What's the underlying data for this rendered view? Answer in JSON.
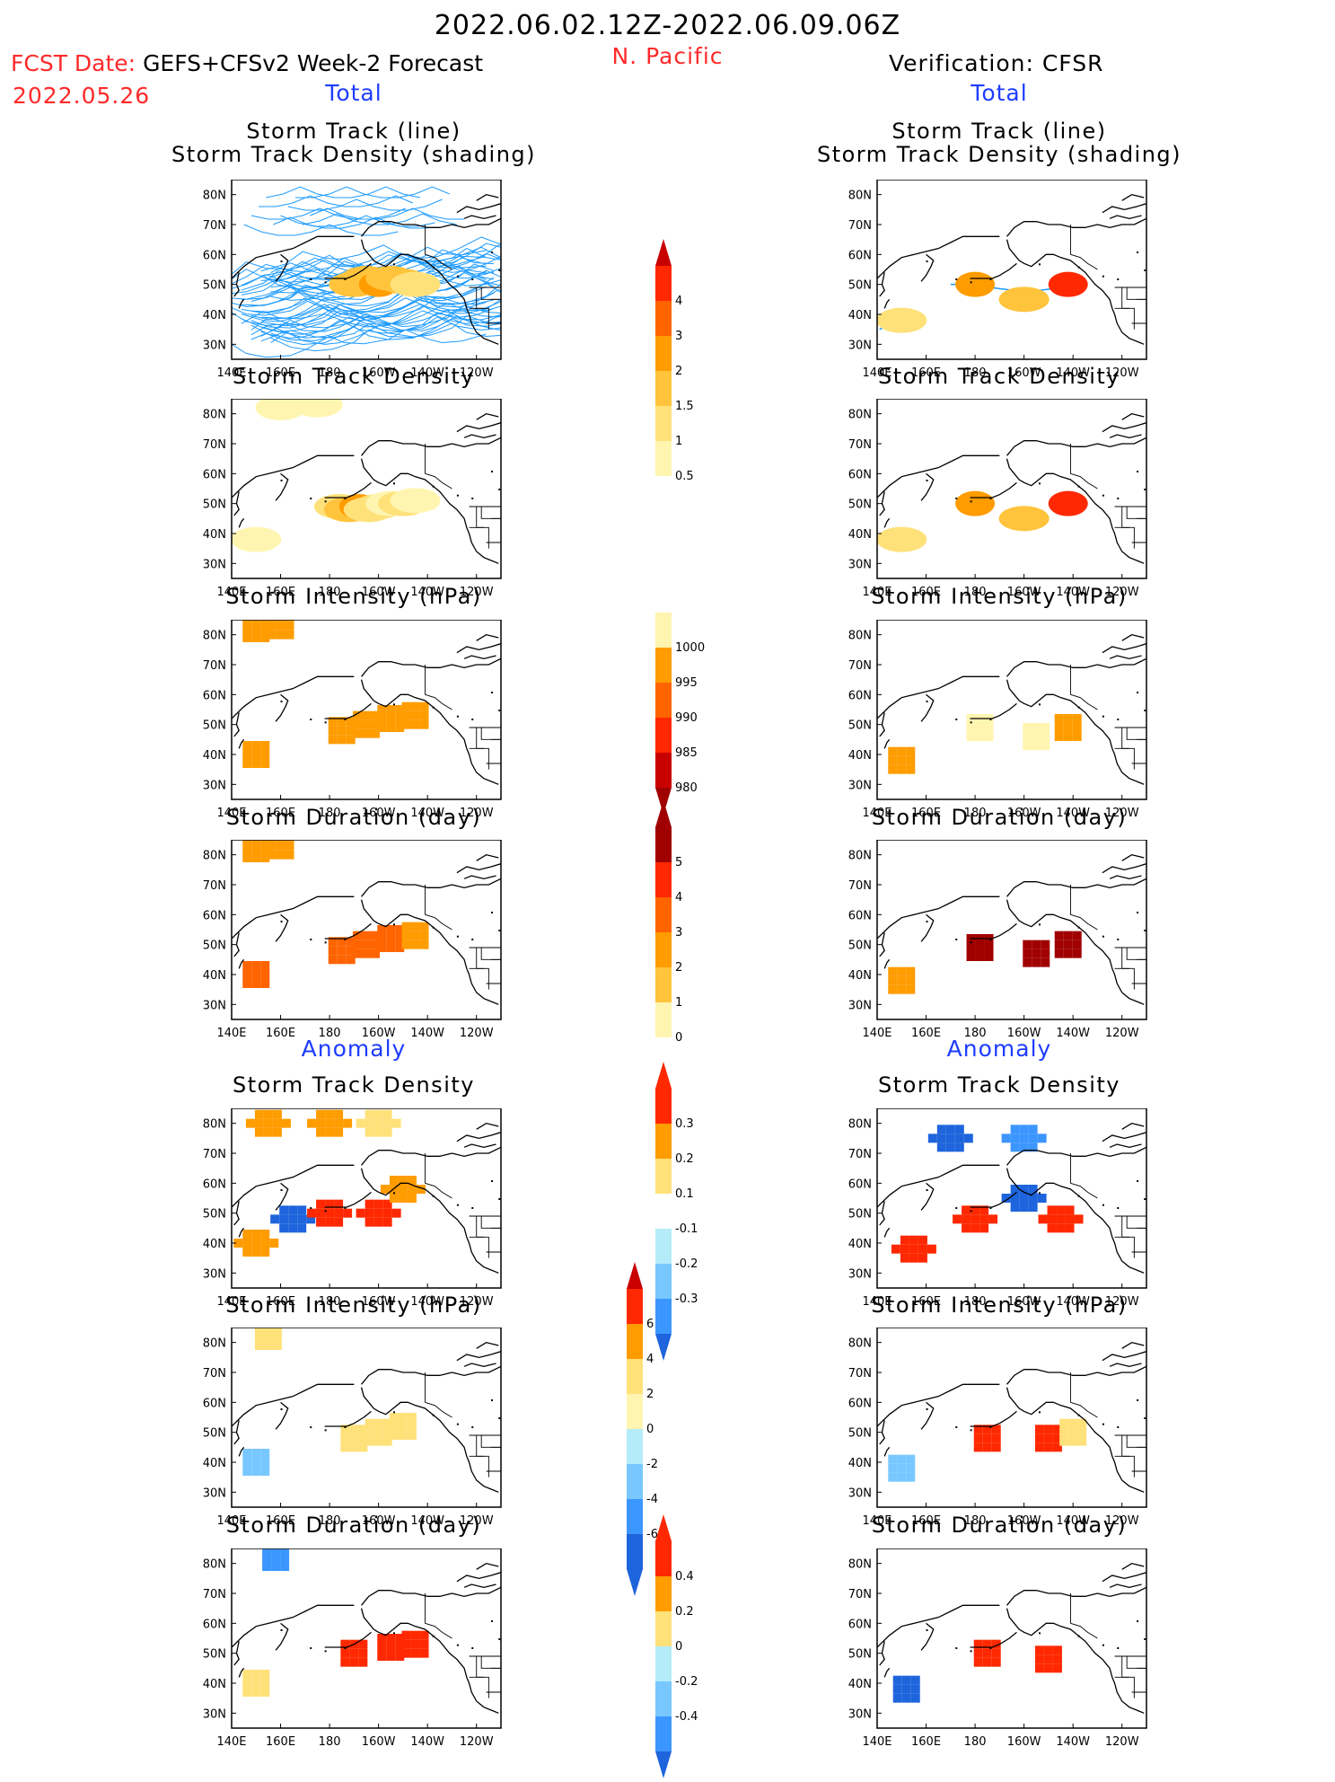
{
  "header": {
    "period": "2022.06.02.12Z-2022.06.09.06Z",
    "fcst_label": "FCST Date:",
    "fcst_model": "GEFS+CFSv2 Week-2 Forecast",
    "fcst_date": "2022.05.26",
    "region": "N. Pacific",
    "verification": "Verification: CFSR",
    "total_left": "Total",
    "total_right": "Total",
    "anomaly_left": "Anomaly",
    "anomaly_right": "Anomaly"
  },
  "panel_titles": {
    "track_a": "Storm Track (line)",
    "track_b": "Storm Track Density (shading)",
    "density": "Storm Track Density",
    "intensity": "Storm Intensity (hPa)",
    "duration": "Storm Duration (day)"
  },
  "axes": {
    "xticks": [
      "140E",
      "160E",
      "180",
      "160W",
      "140W",
      "120W"
    ],
    "yticks": [
      "80N",
      "70N",
      "60N",
      "50N",
      "40N",
      "30N"
    ]
  },
  "colorbars": {
    "density": [
      "4",
      "3",
      "2",
      "1.5",
      "1",
      "0.5"
    ],
    "intensity": [
      "1000",
      "995",
      "990",
      "985",
      "980"
    ],
    "duration": [
      "5",
      "4",
      "3",
      "2",
      "1",
      "0"
    ],
    "density_anom": [
      "0.3",
      "0.2",
      "0.1",
      "-0.1",
      "-0.2",
      "-0.3"
    ],
    "intensity_anom": [
      "6",
      "4",
      "2",
      "0",
      "-2",
      "-4",
      "-6"
    ],
    "duration_anom": [
      "0.4",
      "0.2",
      "0",
      "-0.2",
      "-0.4"
    ]
  },
  "colors": {
    "track_line": "#1e9bff",
    "pale_yellow": "#fff5b0",
    "yellow": "#ffe17a",
    "light_orange": "#ffc43c",
    "orange": "#ff9c00",
    "dark_orange": "#ff6400",
    "red": "#ff2800",
    "dark_red": "#c80000",
    "maroon": "#a00000",
    "light_blue": "#b4ecfa",
    "mid_blue": "#78c8ff",
    "blue": "#3c96ff",
    "dark_blue": "#1e64dc"
  },
  "chart_data": [
    {
      "type": "heatmap",
      "panel": "forecast-track",
      "title": "Storm Track (line) / Storm Track Density (shading)",
      "xlim": [
        140,
        250
      ],
      "ylim": [
        25,
        85
      ],
      "cells": [
        [
          190,
          50,
          1.5
        ],
        [
          195,
          52,
          1.5
        ],
        [
          200,
          50,
          2
        ],
        [
          205,
          52,
          1.5
        ],
        [
          210,
          51,
          1.5
        ],
        [
          215,
          50,
          1
        ]
      ]
    },
    {
      "type": "heatmap",
      "panel": "forecast-density",
      "title": "Storm Track Density",
      "xlim": [
        140,
        250
      ],
      "ylim": [
        25,
        85
      ],
      "cells": [
        [
          184,
          49,
          1
        ],
        [
          188,
          48,
          1.5
        ],
        [
          192,
          49,
          2
        ],
        [
          196,
          48,
          1
        ],
        [
          200,
          49,
          1
        ],
        [
          205,
          50,
          0.5
        ],
        [
          210,
          50,
          1
        ],
        [
          215,
          51,
          0.5
        ],
        [
          160,
          82,
          0.5
        ],
        [
          175,
          83,
          0.5
        ],
        [
          150,
          38,
          0.5
        ]
      ]
    },
    {
      "type": "heatmap",
      "panel": "forecast-intensity",
      "title": "Storm Intensity (hPa)",
      "xlim": [
        140,
        250
      ],
      "ylim": [
        25,
        85
      ],
      "cells": [
        [
          150,
          82,
          995
        ],
        [
          160,
          83,
          995
        ],
        [
          185,
          48,
          995
        ],
        [
          195,
          50,
          995
        ],
        [
          205,
          52,
          995
        ],
        [
          215,
          53,
          995
        ],
        [
          150,
          40,
          995
        ]
      ]
    },
    {
      "type": "heatmap",
      "panel": "forecast-duration",
      "title": "Storm Duration (day)",
      "xlim": [
        140,
        250
      ],
      "ylim": [
        25,
        85
      ],
      "cells": [
        [
          150,
          82,
          3
        ],
        [
          160,
          83,
          3
        ],
        [
          185,
          48,
          4
        ],
        [
          195,
          50,
          4
        ],
        [
          205,
          52,
          4
        ],
        [
          215,
          53,
          3
        ],
        [
          150,
          40,
          4
        ]
      ]
    },
    {
      "type": "heatmap",
      "panel": "forecast-density-anomaly",
      "title": "Storm Track Density",
      "xlim": [
        140,
        250
      ],
      "ylim": [
        25,
        85
      ],
      "cells": [
        [
          155,
          80,
          0.2
        ],
        [
          180,
          80,
          0.2
        ],
        [
          200,
          80,
          0.1
        ],
        [
          165,
          48,
          -0.3
        ],
        [
          180,
          50,
          0.3
        ],
        [
          200,
          50,
          0.3
        ],
        [
          210,
          58,
          0.2
        ],
        [
          150,
          40,
          0.2
        ]
      ]
    },
    {
      "type": "heatmap",
      "panel": "forecast-intensity-anomaly",
      "title": "Storm Intensity (hPa)",
      "xlim": [
        140,
        250
      ],
      "ylim": [
        25,
        85
      ],
      "cells": [
        [
          155,
          82,
          2
        ],
        [
          190,
          48,
          2
        ],
        [
          200,
          50,
          2
        ],
        [
          210,
          52,
          2
        ],
        [
          150,
          40,
          -2
        ]
      ]
    },
    {
      "type": "heatmap",
      "panel": "forecast-duration-anomaly",
      "title": "Storm Duration (day)",
      "xlim": [
        140,
        250
      ],
      "ylim": [
        25,
        85
      ],
      "cells": [
        [
          158,
          82,
          -0.2
        ],
        [
          190,
          50,
          0.4
        ],
        [
          205,
          52,
          0.4
        ],
        [
          215,
          53,
          0.4
        ],
        [
          150,
          40,
          0.2
        ]
      ]
    },
    {
      "type": "heatmap",
      "panel": "verification-track",
      "title": "Storm Track (line) / Storm Track Density (shading)",
      "xlim": [
        140,
        250
      ],
      "ylim": [
        25,
        85
      ],
      "cells": [
        [
          180,
          50,
          2
        ],
        [
          200,
          45,
          1.5
        ],
        [
          218,
          50,
          3
        ],
        [
          150,
          38,
          1
        ]
      ]
    },
    {
      "type": "heatmap",
      "panel": "verification-density",
      "title": "Storm Track Density",
      "xlim": [
        140,
        250
      ],
      "ylim": [
        25,
        85
      ],
      "cells": [
        [
          180,
          50,
          2
        ],
        [
          200,
          45,
          1.5
        ],
        [
          218,
          50,
          3
        ],
        [
          150,
          38,
          1
        ]
      ]
    },
    {
      "type": "heatmap",
      "panel": "verification-intensity",
      "title": "Storm Intensity (hPa)",
      "xlim": [
        140,
        250
      ],
      "ylim": [
        25,
        85
      ],
      "cells": [
        [
          150,
          38,
          995
        ],
        [
          182,
          49,
          1000
        ],
        [
          205,
          46,
          1000
        ],
        [
          218,
          49,
          995
        ]
      ]
    },
    {
      "type": "heatmap",
      "panel": "verification-duration",
      "title": "Storm Duration (day)",
      "xlim": [
        140,
        250
      ],
      "ylim": [
        25,
        85
      ],
      "cells": [
        [
          150,
          38,
          3
        ],
        [
          182,
          49,
          5
        ],
        [
          205,
          47,
          5
        ],
        [
          218,
          50,
          5
        ]
      ]
    },
    {
      "type": "heatmap",
      "panel": "verification-density-anomaly",
      "title": "Storm Track Density",
      "xlim": [
        140,
        250
      ],
      "ylim": [
        25,
        85
      ],
      "cells": [
        [
          170,
          75,
          -0.3
        ],
        [
          200,
          75,
          -0.2
        ],
        [
          200,
          55,
          -0.3
        ],
        [
          180,
          48,
          0.3
        ],
        [
          215,
          48,
          0.3
        ],
        [
          155,
          38,
          0.3
        ]
      ]
    },
    {
      "type": "heatmap",
      "panel": "verification-intensity-anomaly",
      "title": "Storm Intensity (hPa)",
      "xlim": [
        140,
        250
      ],
      "ylim": [
        25,
        85
      ],
      "cells": [
        [
          150,
          38,
          -2
        ],
        [
          185,
          48,
          4
        ],
        [
          210,
          48,
          4
        ],
        [
          220,
          50,
          2
        ]
      ]
    },
    {
      "type": "heatmap",
      "panel": "verification-duration-anomaly",
      "title": "Storm Duration (day)",
      "xlim": [
        140,
        250
      ],
      "ylim": [
        25,
        85
      ],
      "cells": [
        [
          152,
          38,
          -0.4
        ],
        [
          185,
          50,
          0.4
        ],
        [
          210,
          48,
          0.4
        ]
      ]
    }
  ]
}
